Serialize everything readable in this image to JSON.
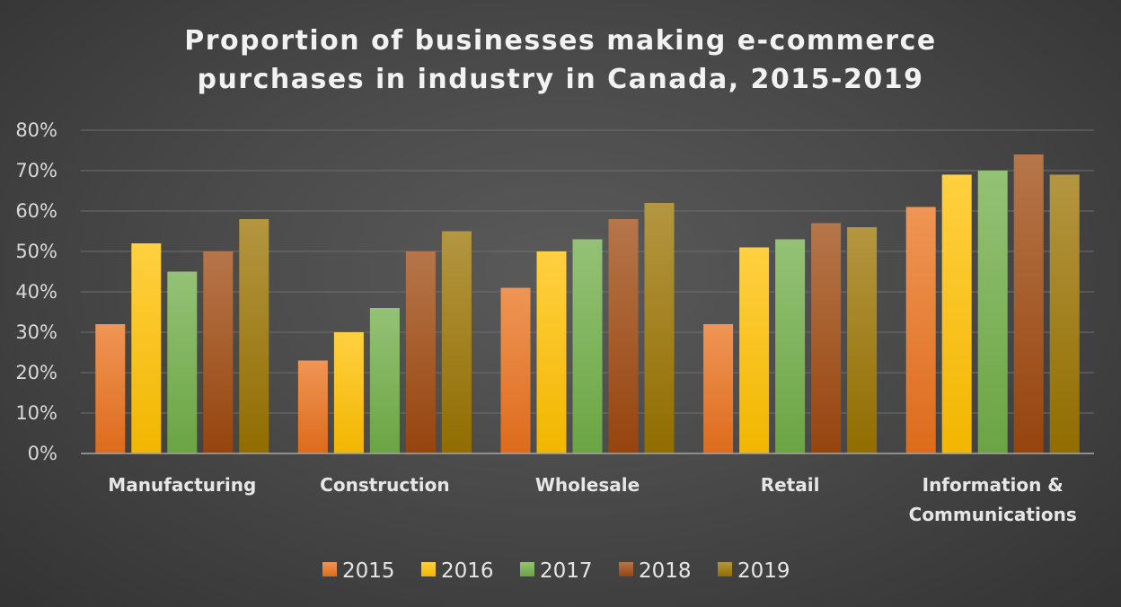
{
  "chart_data": {
    "type": "bar",
    "title": "Proportion of businesses making e-commerce purchases in industry in Canada, 2015-2019",
    "title_lines": [
      "Proportion of businesses making e-commerce",
      "purchases in industry in Canada, 2015-2019"
    ],
    "categories": [
      "Manufacturing",
      "Construction",
      "Wholesale",
      "Retail",
      "Information & Communications"
    ],
    "category_lines": [
      [
        "Manufacturing"
      ],
      [
        "Construction"
      ],
      [
        "Wholesale"
      ],
      [
        "Retail"
      ],
      [
        "Information &",
        "Communications"
      ]
    ],
    "series": [
      {
        "name": "2015",
        "color": "#e9711c",
        "values": [
          32,
          23,
          41,
          32,
          61
        ]
      },
      {
        "name": "2016",
        "color": "#ffc000",
        "values": [
          52,
          30,
          50,
          51,
          69
        ]
      },
      {
        "name": "2017",
        "color": "#70ad47",
        "values": [
          45,
          36,
          53,
          53,
          70
        ]
      },
      {
        "name": "2018",
        "color": "#9e480e",
        "values": [
          50,
          50,
          58,
          57,
          74
        ]
      },
      {
        "name": "2019",
        "color": "#997300",
        "values": [
          58,
          55,
          62,
          56,
          69
        ]
      }
    ],
    "ylim": [
      0,
      80
    ],
    "yticks": [
      0,
      10,
      20,
      30,
      40,
      50,
      60,
      70,
      80
    ],
    "ytick_labels": [
      "0%",
      "10%",
      "20%",
      "30%",
      "40%",
      "50%",
      "60%",
      "70%",
      "80%"
    ],
    "xlabel": "",
    "ylabel": "",
    "grid": true,
    "legend_position": "bottom"
  }
}
